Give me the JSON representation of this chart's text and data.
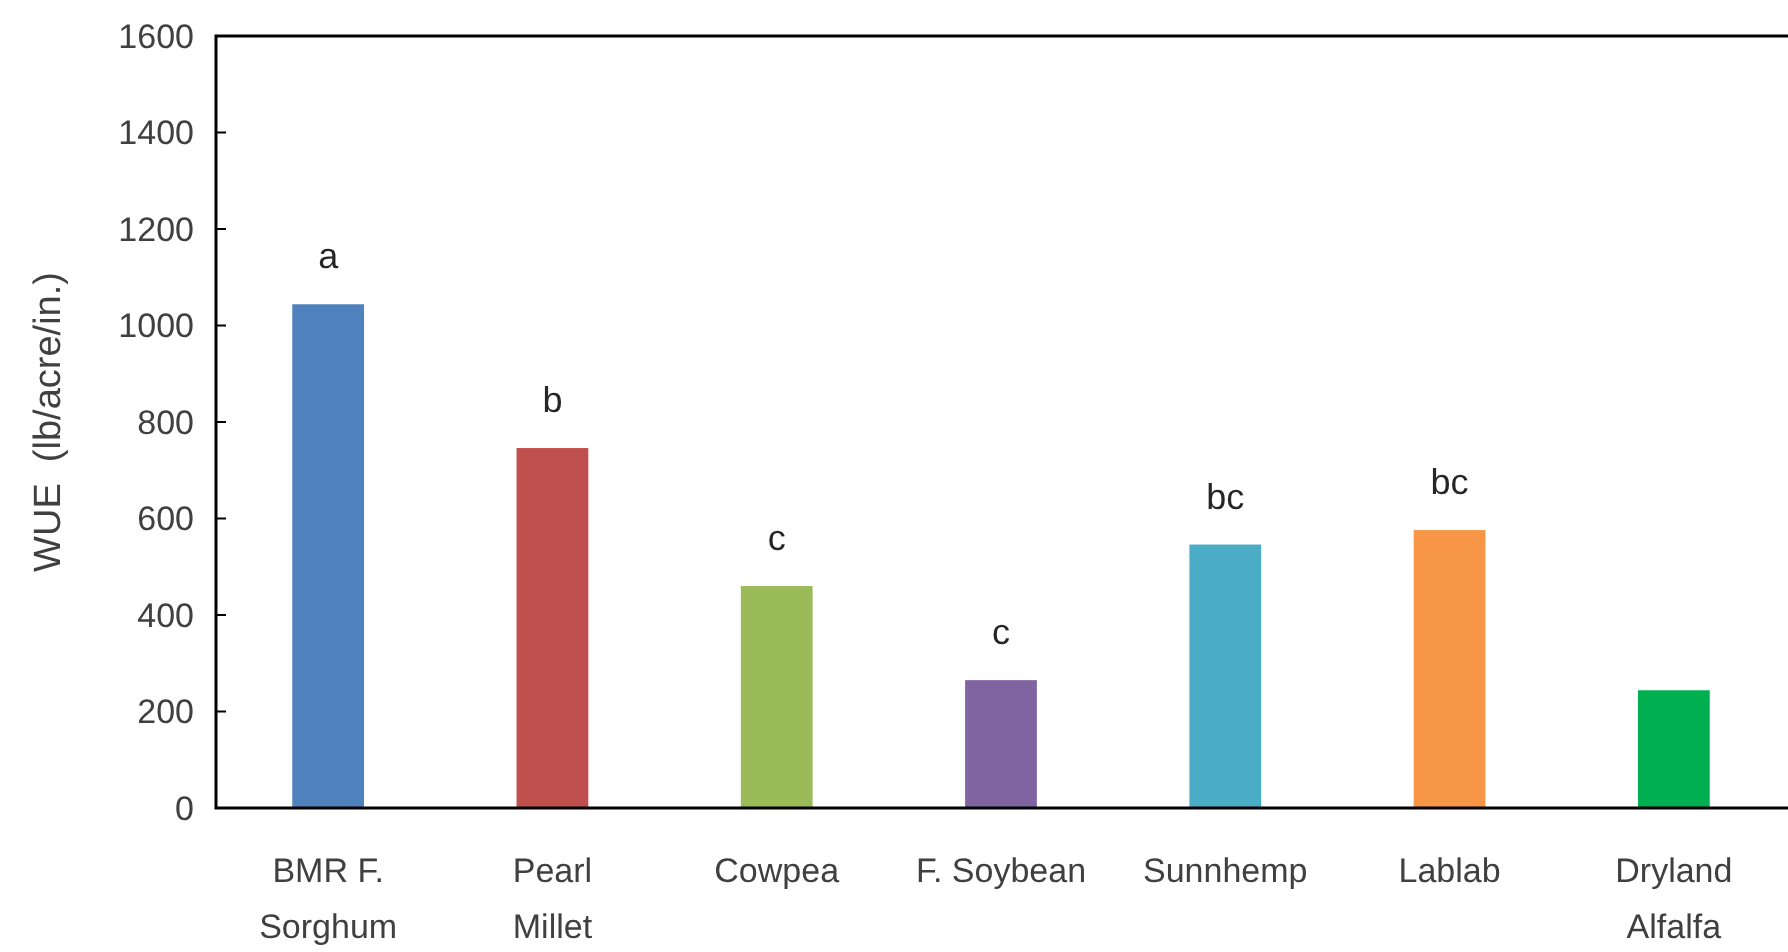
{
  "chart_data": {
    "type": "bar",
    "ylabel": "WUE  (lb/acre/in.)",
    "categories": [
      "BMR F. Sorghum",
      "Pearl Millet",
      "Cowpea",
      "F. Soybean",
      "Sunnhemp",
      "Lablab",
      "Dryland Alfalfa"
    ],
    "values": [
      1044,
      746,
      460,
      265,
      546,
      576,
      244
    ],
    "colors": [
      "#4f81bd",
      "#c0504d",
      "#9bbb59",
      "#8064a2",
      "#4bacc6",
      "#f79646",
      "#00b050"
    ],
    "ylim": [
      0,
      1600
    ],
    "yticks": [
      0,
      200,
      400,
      600,
      800,
      1000,
      1200,
      1400,
      1600
    ],
    "grid": false,
    "annotations": [
      {
        "text": "a",
        "x": "BMR F. Sorghum",
        "y": 1044
      },
      {
        "text": "b",
        "x": "Pearl Millet",
        "y": 746
      },
      {
        "text": "c",
        "x": "Cowpea",
        "y": 460
      },
      {
        "text": "c",
        "x": "F. Soybean",
        "y": 265
      },
      {
        "text": "bc",
        "x": "Sunnhemp",
        "y": 546
      },
      {
        "text": "bc",
        "x": "Lablab",
        "y": 576
      }
    ]
  }
}
